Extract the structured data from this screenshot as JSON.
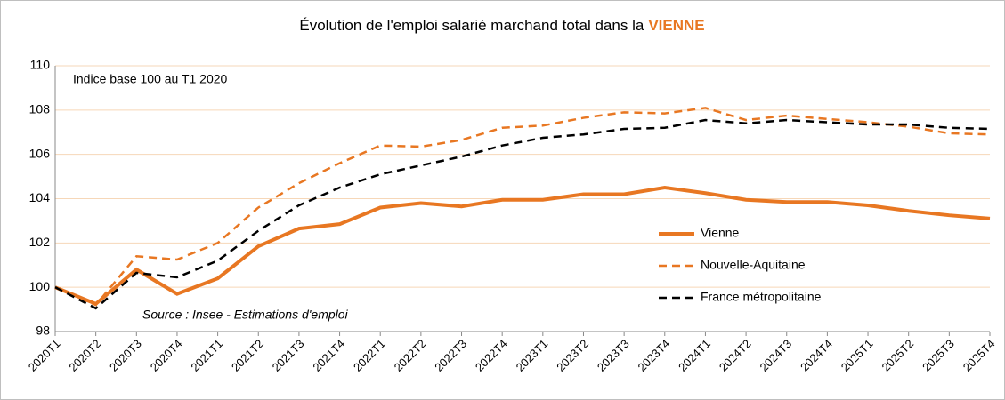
{
  "chart_data": {
    "type": "line",
    "title": "Évolution de l'emploi salarié marchand total dans la",
    "title_highlight": "VIENNE",
    "annotations": [
      "Indice base 100 au T1 2020",
      "Source : Insee - Estimations d'emploi"
    ],
    "categories": [
      "2020T1",
      "2020T2",
      "2020T3",
      "2020T4",
      "2021T1",
      "2021T2",
      "2021T3",
      "2021T4",
      "2022T1",
      "2022T2",
      "2022T3",
      "2022T4",
      "2023T1",
      "2023T2",
      "2023T3",
      "2023T4",
      "2024T1",
      "2024T2",
      "2024T3",
      "2024T4",
      "2025T1",
      "2025T2",
      "2025T3",
      "2025T4"
    ],
    "series": [
      {
        "name": "Vienne",
        "color": "#e87722",
        "dash": false,
        "values": [
          100,
          99.25,
          100.8,
          99.7,
          100.4,
          101.85,
          102.65,
          102.85,
          103.6,
          103.8,
          103.65,
          103.95,
          103.95,
          104.2,
          104.2,
          104.5,
          104.25,
          103.95,
          103.85,
          103.85,
          103.7,
          103.45,
          103.25,
          103.1
        ]
      },
      {
        "name": "Nouvelle-Aquitaine",
        "color": "#e87722",
        "dash": true,
        "values": [
          100,
          99.2,
          101.4,
          101.25,
          102.0,
          103.6,
          104.7,
          105.6,
          106.4,
          106.35,
          106.65,
          107.2,
          107.3,
          107.65,
          107.9,
          107.85,
          108.1,
          107.55,
          107.75,
          107.6,
          107.45,
          107.25,
          106.95,
          106.9
        ]
      },
      {
        "name": "France métropolitaine",
        "color": "#000000",
        "dash": true,
        "values": [
          100,
          99.05,
          100.65,
          100.45,
          101.2,
          102.55,
          103.7,
          104.5,
          105.1,
          105.5,
          105.9,
          106.4,
          106.75,
          106.9,
          107.15,
          107.2,
          107.55,
          107.4,
          107.55,
          107.45,
          107.35,
          107.35,
          107.2,
          107.15
        ]
      }
    ],
    "ylim": [
      98,
      110
    ],
    "yticks": [
      98,
      100,
      102,
      104,
      106,
      108,
      110
    ],
    "grid": true
  }
}
